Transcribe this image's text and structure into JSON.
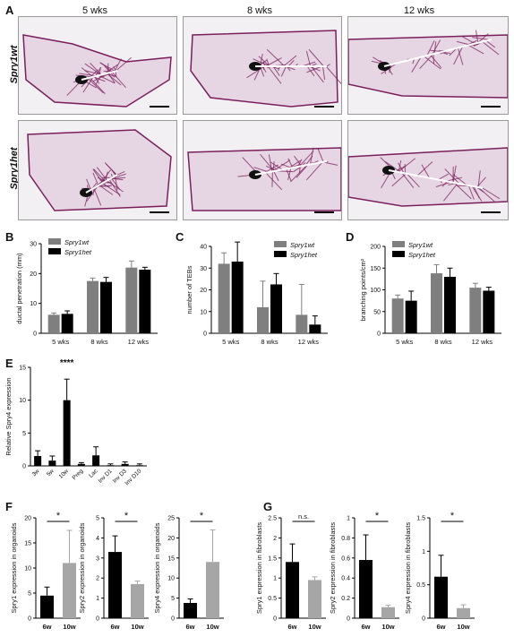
{
  "panels": {
    "A": "A",
    "B": "B",
    "C": "C",
    "D": "D",
    "E": "E",
    "F": "F",
    "G": "G"
  },
  "panel_A": {
    "columns": [
      "5 wks",
      "8 wks",
      "12 wks"
    ],
    "rows": [
      "Spry1wt",
      "Spry1het"
    ]
  },
  "colors": {
    "wt": "#7f7f7f",
    "het": "#000000",
    "tissue": "#7a1f5c",
    "bg_tissue": "#e6d6e3",
    "g_bar": "#a6a6a6"
  },
  "chart_data": [
    {
      "type": "bar",
      "panel": "B",
      "categories": [
        "5 wks",
        "8 wks",
        "12 wks"
      ],
      "ylabel": "ductal penetration (mm)",
      "ylim": [
        0,
        30
      ],
      "yticks": [
        0,
        10,
        20,
        30
      ],
      "legend_position": "top-left",
      "series": [
        {
          "name": "Spry1wt",
          "values": [
            6.2,
            17.5,
            22
          ],
          "err": [
            0.6,
            1.0,
            2.2
          ]
        },
        {
          "name": "Spry1het",
          "values": [
            6.5,
            17.2,
            21.3
          ],
          "err": [
            1.0,
            1.5,
            0.8
          ]
        }
      ]
    },
    {
      "type": "bar",
      "panel": "C",
      "categories": [
        "5 wks",
        "8 wks",
        "12 wks"
      ],
      "ylabel": "number of TEBs",
      "ylim": [
        0,
        40
      ],
      "yticks": [
        0,
        10,
        20,
        30,
        40
      ],
      "legend_position": "top-right",
      "series": [
        {
          "name": "Spry1wt",
          "values": [
            32,
            12,
            8.5
          ],
          "err": [
            5,
            12,
            14
          ]
        },
        {
          "name": "Spry1het",
          "values": [
            33,
            22.5,
            4
          ],
          "err": [
            9,
            5,
            4
          ]
        }
      ]
    },
    {
      "type": "bar",
      "panel": "D",
      "categories": [
        "5 wks",
        "8 wks",
        "12 wks"
      ],
      "ylabel": "branching points/cm²",
      "ylim": [
        0,
        200
      ],
      "yticks": [
        0,
        50,
        100,
        150,
        200
      ],
      "legend_position": "top-left",
      "series": [
        {
          "name": "Spry1wt",
          "values": [
            80,
            138,
            105
          ],
          "err": [
            8,
            20,
            10
          ]
        },
        {
          "name": "Spry1het",
          "values": [
            75,
            130,
            98
          ],
          "err": [
            22,
            20,
            8
          ]
        }
      ]
    },
    {
      "type": "bar",
      "panel": "E",
      "categories": [
        "3w",
        "5w",
        "10w",
        "Preg",
        "Lac",
        "Inv D1",
        "Inv D3",
        "Inv D10"
      ],
      "ylabel": "Relative Spry4 expression",
      "ylim": [
        0,
        15
      ],
      "yticks": [
        0,
        5,
        10,
        15
      ],
      "series": [
        {
          "values": [
            1.5,
            0.8,
            10,
            0.3,
            1.6,
            0.1,
            0.3,
            0.1
          ],
          "err": [
            0.8,
            0.7,
            3.2,
            0.2,
            1.3,
            0.2,
            0.3,
            0.2
          ]
        }
      ],
      "annotations": [
        {
          "category": "10w",
          "text": "****"
        }
      ]
    },
    {
      "type": "bar",
      "panel": "F1",
      "categories": [
        "6w",
        "10w"
      ],
      "ylabel": "Spry1 expression in organoids",
      "ylim": [
        0,
        20
      ],
      "yticks": [
        0,
        5,
        10,
        15,
        20
      ],
      "series": [
        {
          "values": [
            4.5,
            11
          ],
          "err": [
            1.7,
            6.5
          ]
        }
      ],
      "annotations": [
        {
          "text": "*"
        }
      ]
    },
    {
      "type": "bar",
      "panel": "F2",
      "categories": [
        "6w",
        "10w"
      ],
      "ylabel": "Spry2 expression in organoids",
      "ylim": [
        0,
        5
      ],
      "yticks": [
        0,
        1,
        2,
        3,
        4,
        5
      ],
      "series": [
        {
          "values": [
            3.3,
            1.7
          ],
          "err": [
            0.8,
            0.15
          ]
        }
      ],
      "annotations": [
        {
          "text": "*"
        }
      ]
    },
    {
      "type": "bar",
      "panel": "F3",
      "categories": [
        "6w",
        "10w"
      ],
      "ylabel": "Spry4 expression in organoids",
      "ylim": [
        0,
        25
      ],
      "yticks": [
        0,
        5,
        10,
        15,
        20,
        25
      ],
      "series": [
        {
          "values": [
            3.8,
            14
          ],
          "err": [
            1,
            8
          ]
        }
      ],
      "annotations": [
        {
          "text": "*"
        }
      ]
    },
    {
      "type": "bar",
      "panel": "G1",
      "categories": [
        "6w",
        "10w"
      ],
      "ylabel": "Spry1 expression in fibroblasts",
      "ylim": [
        0,
        2.5
      ],
      "yticks": [
        0,
        0.5,
        1.0,
        1.5,
        2.0,
        2.5
      ],
      "series": [
        {
          "values": [
            1.4,
            0.95
          ],
          "err": [
            0.45,
            0.08
          ]
        }
      ],
      "annotations": [
        {
          "text": "n.s."
        }
      ]
    },
    {
      "type": "bar",
      "panel": "G2",
      "categories": [
        "6w",
        "10w"
      ],
      "ylabel": "Spry2 expression in fibroblasts",
      "ylim": [
        0,
        1.0
      ],
      "yticks": [
        0,
        0.2,
        0.4,
        0.6,
        0.8,
        1.0
      ],
      "series": [
        {
          "values": [
            0.58,
            0.11
          ],
          "err": [
            0.25,
            0.02
          ]
        }
      ],
      "annotations": [
        {
          "text": "*"
        }
      ]
    },
    {
      "type": "bar",
      "panel": "G3",
      "categories": [
        "6w",
        "10w"
      ],
      "ylabel": "Spry4 expression in fibroblasts",
      "ylim": [
        0,
        1.5
      ],
      "yticks": [
        0,
        0.5,
        1.0,
        1.5
      ],
      "series": [
        {
          "values": [
            0.62,
            0.15
          ],
          "err": [
            0.32,
            0.05
          ]
        }
      ],
      "annotations": [
        {
          "text": "*"
        }
      ]
    }
  ]
}
